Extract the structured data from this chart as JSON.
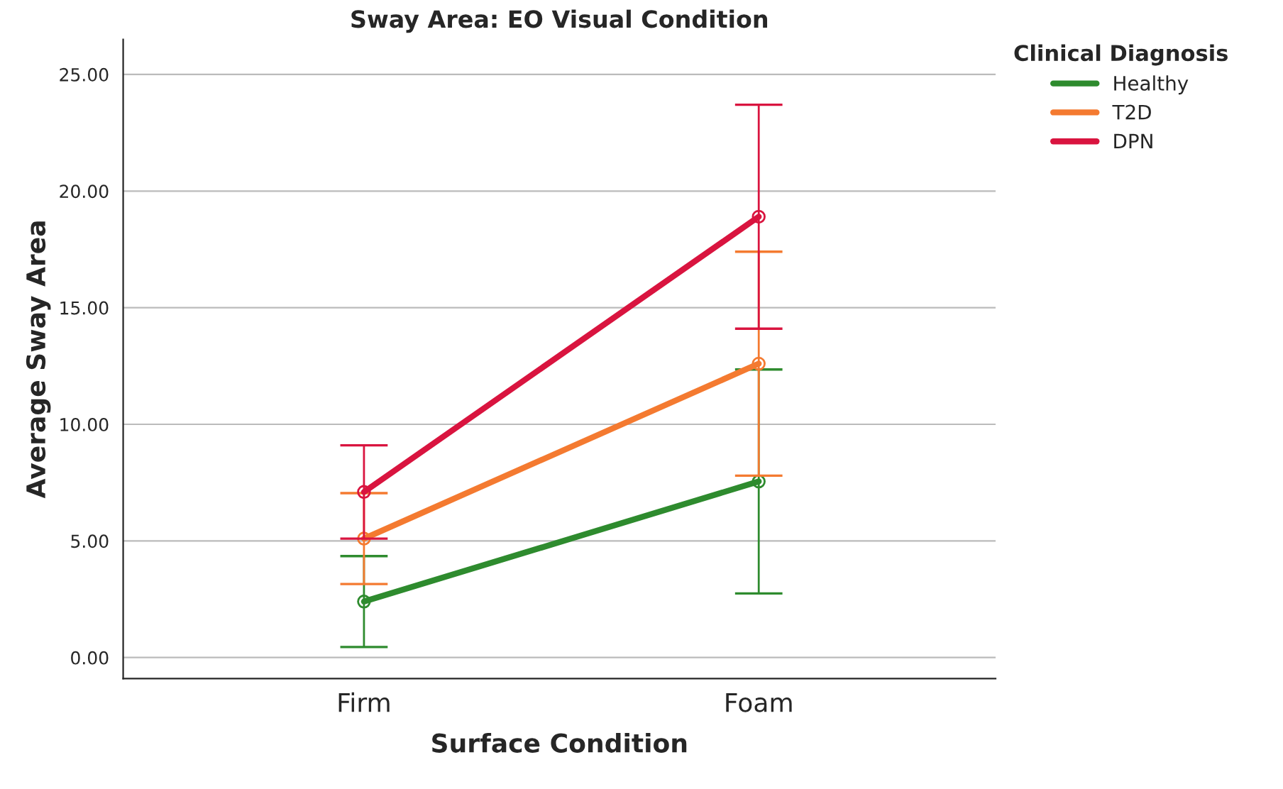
{
  "chart_data": {
    "type": "line",
    "title": "Sway Area: EO Visual Condition",
    "xlabel": "Surface Condition",
    "ylabel": "Average Sway Area",
    "legend_title": "Clinical Diagnosis",
    "categories": [
      "Firm",
      "Foam"
    ],
    "series": [
      {
        "name": "Healthy",
        "color": "#2e8b2e",
        "values": [
          2.4,
          7.55
        ],
        "errors": [
          [
            0.45,
            4.35
          ],
          [
            2.75,
            12.35
          ]
        ]
      },
      {
        "name": "T2D",
        "color": "#f47a30",
        "values": [
          5.1,
          12.6
        ],
        "errors": [
          [
            3.15,
            7.05
          ],
          [
            7.8,
            17.4
          ]
        ]
      },
      {
        "name": "DPN",
        "color": "#d9143f",
        "values": [
          7.1,
          18.9
        ],
        "errors": [
          [
            5.1,
            9.1
          ],
          [
            14.1,
            23.7
          ]
        ]
      }
    ],
    "ylim": [
      -0.9,
      26.5
    ],
    "yticks": [
      {
        "value": 0,
        "label": "0.00"
      },
      {
        "value": 5,
        "label": "5.00"
      },
      {
        "value": 10,
        "label": "10.00"
      },
      {
        "value": 15,
        "label": "15.00"
      },
      {
        "value": 20,
        "label": "20.00"
      },
      {
        "value": 25,
        "label": "25.00"
      }
    ],
    "grid": "y",
    "legend": "top right",
    "marker": "circle",
    "line_style": "solid"
  }
}
